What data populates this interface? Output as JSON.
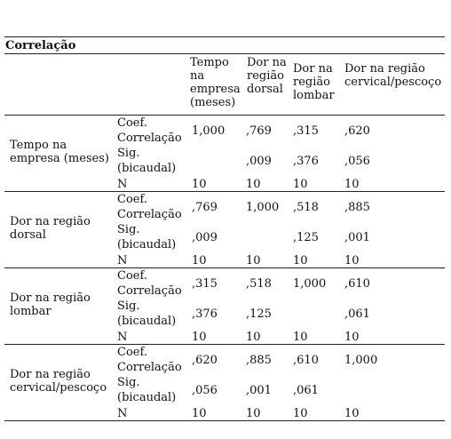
{
  "table": {
    "title": "Correlação",
    "columns": [
      "Tempo na empresa (meses)",
      "Dor na região dorsal",
      "Dor na região lombar",
      "Dor na região cervical/pescoço"
    ],
    "stat_labels": {
      "coef_line1": "Coef.",
      "coef_line2": "Correlação",
      "sig_line1": "Sig.",
      "sig_line2": "(bicaudal)",
      "n": "N"
    },
    "rows": [
      {
        "label": "Tempo na empresa (meses)",
        "coef": [
          "1,000",
          ",769",
          ",315",
          ",620"
        ],
        "sig": [
          "",
          ",009",
          ",376",
          ",056"
        ],
        "n": [
          "10",
          "10",
          "10",
          "10"
        ]
      },
      {
        "label": "Dor na região dorsal",
        "coef": [
          ",769",
          "1,000",
          ",518",
          ",885"
        ],
        "sig": [
          ",009",
          "",
          ",125",
          ",001"
        ],
        "n": [
          "10",
          "10",
          "10",
          "10"
        ]
      },
      {
        "label": "Dor na região lombar",
        "coef": [
          ",315",
          ",518",
          "1,000",
          ",610"
        ],
        "sig": [
          ",376",
          ",125",
          "",
          ",061"
        ],
        "n": [
          "10",
          "10",
          "10",
          "10"
        ]
      },
      {
        "label": "Dor na região cervical/pescoço",
        "coef": [
          ",620",
          ",885",
          ",610",
          "1,000"
        ],
        "sig": [
          ",056",
          ",001",
          ",061",
          ""
        ],
        "n": [
          "10",
          "10",
          "10",
          "10"
        ]
      }
    ]
  }
}
